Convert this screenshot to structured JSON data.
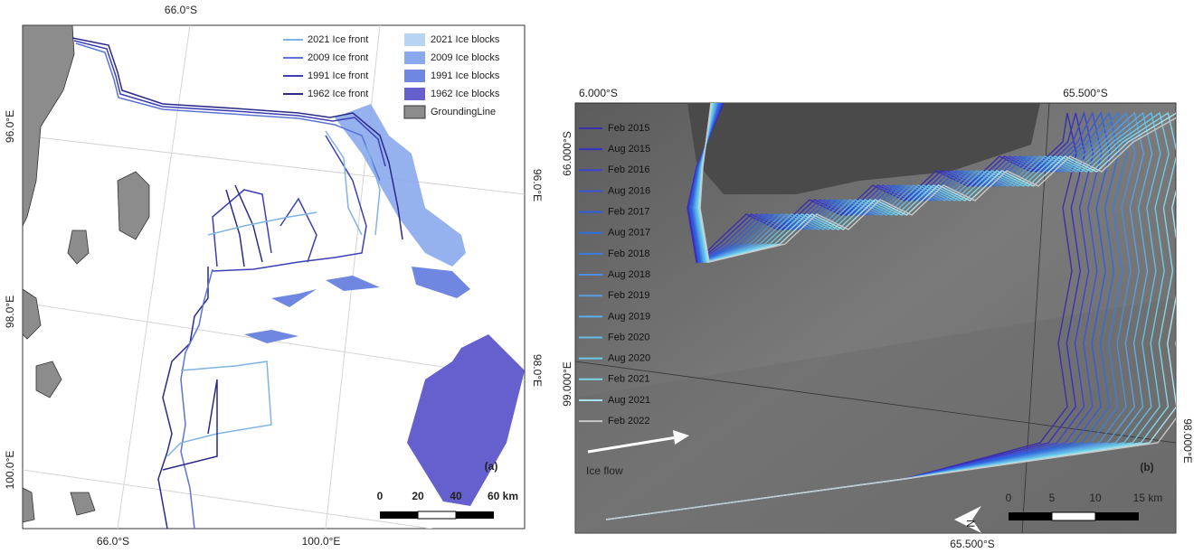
{
  "panel_a": {
    "label": "(a)",
    "top_labels": [
      "66.0°S"
    ],
    "left_labels": [
      "96.0°E",
      "98.0°E",
      "100.0°E"
    ],
    "right_labels": [
      "96.0°E",
      "98.0°E"
    ],
    "bottom_labels": [
      "66.0°S",
      "100.0°E"
    ],
    "legend_fronts": [
      {
        "label": "2021 Ice front",
        "color": "#7fb3e6"
      },
      {
        "label": "2009 Ice front",
        "color": "#5b74d6"
      },
      {
        "label": "1991 Ice front",
        "color": "#3b3fb5"
      },
      {
        "label": "1962 Ice front",
        "color": "#2a2a8a"
      }
    ],
    "legend_blocks": [
      {
        "label": "2021 Ice blocks",
        "color": "#b8d4f2"
      },
      {
        "label": "2009 Ice blocks",
        "color": "#8aa8ec"
      },
      {
        "label": "1991 Ice blocks",
        "color": "#6f87e0"
      },
      {
        "label": "1962 Ice blocks",
        "color": "#6660cf"
      },
      {
        "label": "GroundingLine",
        "color": "#8c8c8c"
      }
    ],
    "scale": [
      "0",
      "20",
      "40",
      "60 km"
    ]
  },
  "panel_b": {
    "label": "(b)",
    "top_labels": [
      "6.000°S",
      "65.500°S"
    ],
    "left_labels": [
      "66.000°S",
      "99.000°E"
    ],
    "right_labels": [
      "98.000°E"
    ],
    "bottom_labels": [
      "65.500°S"
    ],
    "legend": [
      {
        "label": "Feb 2015",
        "color": "#3b2fa8"
      },
      {
        "label": "Aug 2015",
        "color": "#3630c4"
      },
      {
        "label": "Feb 2016",
        "color": "#3a45d0"
      },
      {
        "label": "Aug 2016",
        "color": "#3d55d8"
      },
      {
        "label": "Feb 2017",
        "color": "#2f5ee0"
      },
      {
        "label": "Aug 2017",
        "color": "#2f6de0"
      },
      {
        "label": "Feb 2018",
        "color": "#3a7ee0"
      },
      {
        "label": "Aug 2018",
        "color": "#4a8ee0"
      },
      {
        "label": "Feb 2019",
        "color": "#5a9ee6"
      },
      {
        "label": "Aug 2019",
        "color": "#5caee6"
      },
      {
        "label": "Feb 2020",
        "color": "#62bde6"
      },
      {
        "label": "Aug 2020",
        "color": "#6ccae8"
      },
      {
        "label": "Feb 2021",
        "color": "#80d6e8"
      },
      {
        "label": "Aug 2021",
        "color": "#a8e2ee"
      },
      {
        "label": "Feb 2022",
        "color": "#c8c8c8"
      }
    ],
    "flow_label": "Ice flow",
    "north": "N",
    "scale": [
      "0",
      "5",
      "10",
      "15 km"
    ]
  }
}
